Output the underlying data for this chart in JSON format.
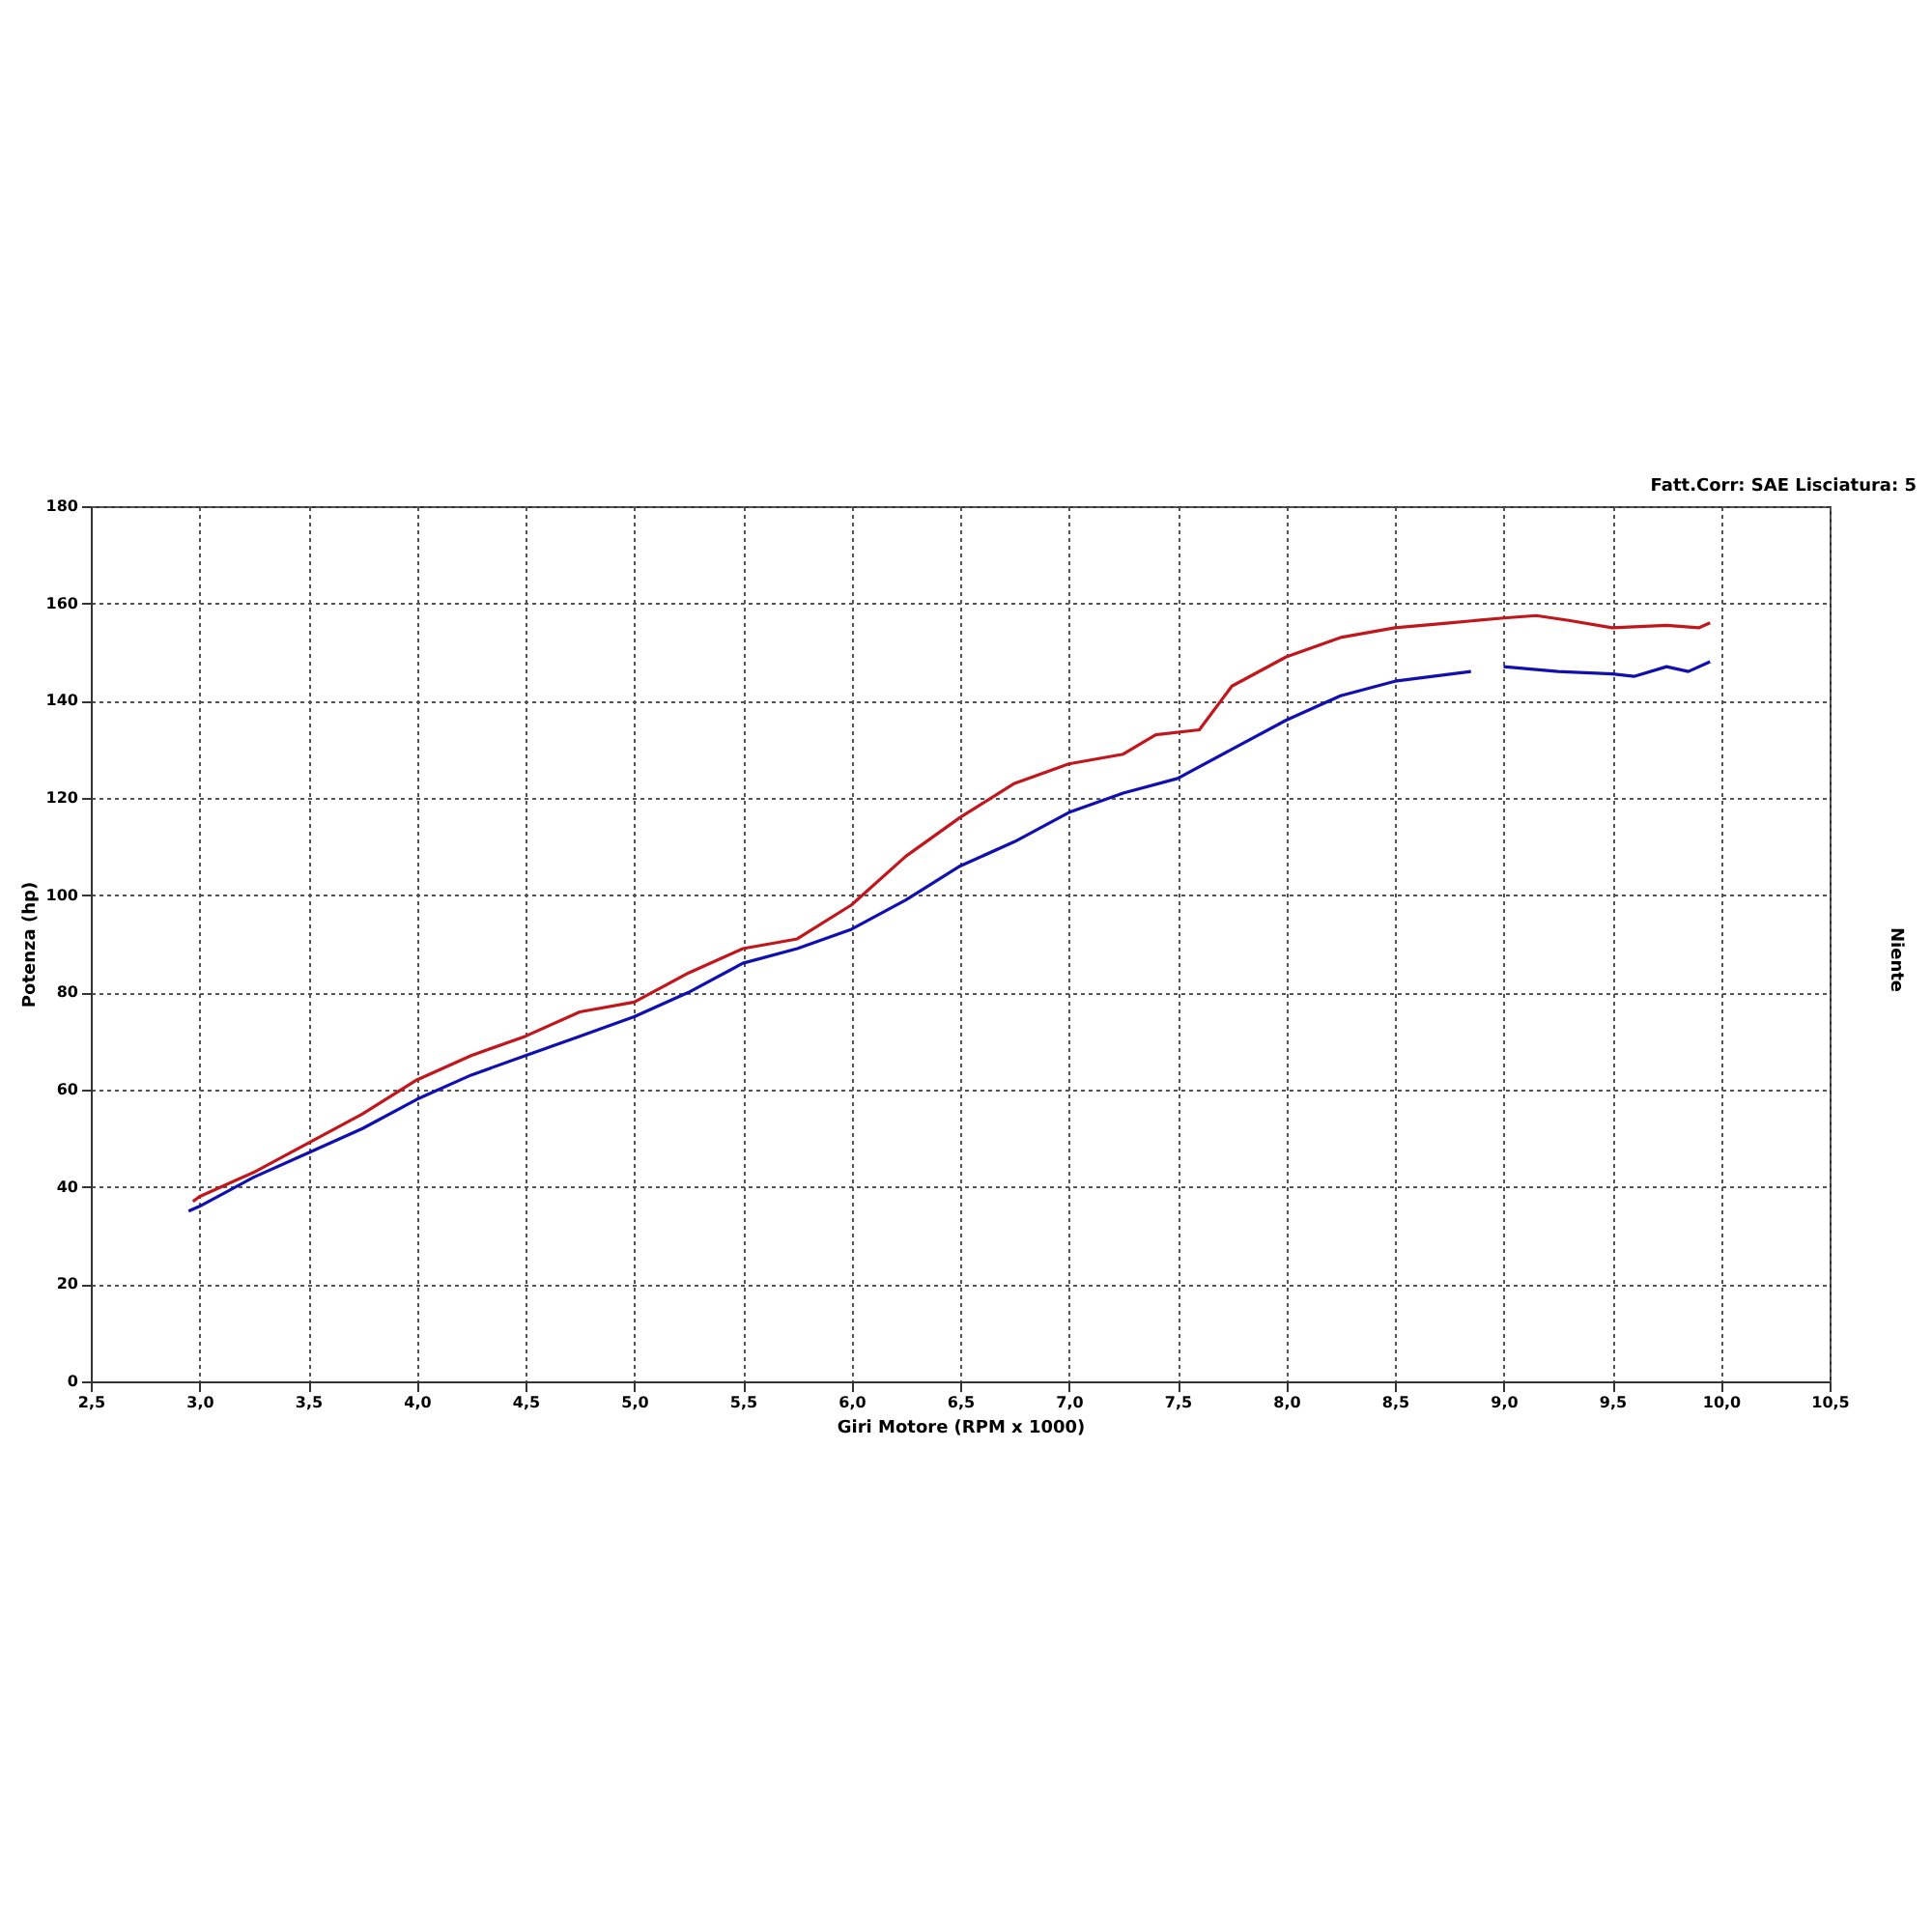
{
  "chart_data": {
    "type": "line",
    "xlabel": "Giri Motore (RPM x 1000)",
    "ylabel": "Potenza (hp)",
    "annotations": [
      "Fatt.Corr: SAE  Lisciatura: 5",
      "Niente"
    ],
    "xlim": [
      2.5,
      10.5
    ],
    "xticks": [
      {
        "value": 2.5,
        "label": "2,5"
      },
      {
        "value": 3,
        "label": "3,0"
      },
      {
        "value": 3.5,
        "label": "3,5"
      },
      {
        "value": 4,
        "label": "4,0"
      },
      {
        "value": 4.5,
        "label": "4,5"
      },
      {
        "value": 5,
        "label": "5,0"
      },
      {
        "value": 5.5,
        "label": "5,5"
      },
      {
        "value": 6,
        "label": "6,0"
      },
      {
        "value": 6.5,
        "label": "6,5"
      },
      {
        "value": 7,
        "label": "7,0"
      },
      {
        "value": 7.5,
        "label": "7,5"
      },
      {
        "value": 8,
        "label": "8,0"
      },
      {
        "value": 8.5,
        "label": "8,5"
      },
      {
        "value": 9,
        "label": "9,0"
      },
      {
        "value": 9.5,
        "label": "9,5"
      },
      {
        "value": 10,
        "label": "10,0"
      },
      {
        "value": 10.5,
        "label": "10,5"
      }
    ],
    "ylim": [
      0,
      180
    ],
    "yticks": [
      0,
      20,
      40,
      60,
      80,
      100,
      120,
      140,
      160,
      180
    ],
    "grid": true,
    "line_style": "solid",
    "marker": "none",
    "legend": false,
    "series": [
      {
        "color": "#c0161c",
        "x": [
          2.97,
          3.0,
          3.25,
          3.5,
          3.75,
          4.0,
          4.25,
          4.5,
          4.75,
          5.0,
          5.25,
          5.5,
          5.75,
          6.0,
          6.25,
          6.5,
          6.75,
          7.0,
          7.25,
          7.4,
          7.6,
          7.75,
          8.0,
          8.25,
          8.5,
          8.75,
          9.0,
          9.15,
          9.3,
          9.5,
          9.75,
          9.9,
          9.95
        ],
        "values": [
          37,
          38,
          43,
          49,
          55,
          62,
          67,
          71,
          76,
          78,
          84,
          89,
          91,
          98,
          108,
          116,
          123,
          127,
          129,
          133,
          134,
          143,
          149,
          153,
          155,
          156,
          157,
          157.5,
          156.5,
          155,
          155.5,
          155,
          156
        ]
      },
      {
        "color": "#1010b0",
        "x": [
          2.95,
          3.0,
          3.25,
          3.5,
          3.75,
          4.0,
          4.25,
          4.5,
          4.75,
          5.0,
          5.25,
          5.5,
          5.75,
          6.0,
          6.25,
          6.5,
          6.75,
          7.0,
          7.25,
          7.5,
          7.75,
          8.0,
          8.25,
          8.5,
          8.85,
          8.92,
          9.0,
          9.25,
          9.5,
          9.6,
          9.75,
          9.85,
          9.95
        ],
        "values": [
          35,
          36,
          42,
          47,
          52,
          58,
          63,
          67,
          71,
          75,
          80,
          86,
          89,
          93,
          99,
          106,
          111,
          117,
          121,
          124,
          130,
          136,
          141,
          144,
          146,
          null,
          147,
          146,
          145.5,
          145,
          147,
          146,
          148
        ]
      }
    ]
  }
}
